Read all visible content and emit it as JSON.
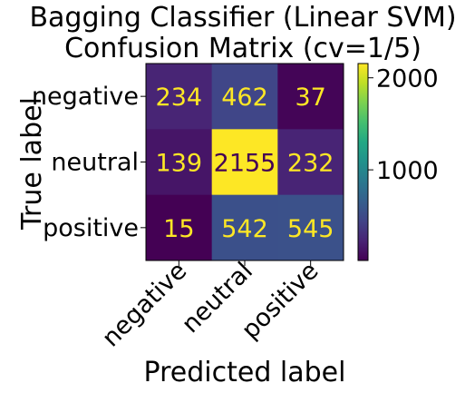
{
  "chart_data": {
    "type": "heatmap",
    "title_lines": [
      "Bagging Classifier (Linear SVM)",
      "Confusion Matrix (cv=1/5)"
    ],
    "xlabel": "Predicted label",
    "ylabel": "True label",
    "row_labels": [
      "negative",
      "neutral",
      "positive"
    ],
    "col_labels": [
      "negative",
      "neutral",
      "positive"
    ],
    "values": [
      [
        234,
        462,
        37
      ],
      [
        139,
        2155,
        232
      ],
      [
        15,
        542,
        545
      ]
    ],
    "colormap": "viridis",
    "value_range": [
      15,
      2155
    ],
    "colorbar_ticks": [
      1000,
      2000
    ],
    "annotation_colors": {
      "on_dark": "#fde725",
      "on_light": "#440154"
    }
  }
}
